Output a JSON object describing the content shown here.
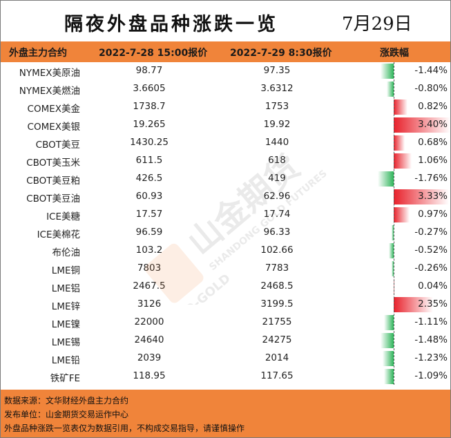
{
  "title": "隔夜外盘品种涨跌一览",
  "date": "7月29日",
  "columns": {
    "contract": "外盘主力合约",
    "price_prev": "2022-7-28 15:00报价",
    "price_curr": "2022-7-29 8:30报价",
    "change": "涨跌幅"
  },
  "chart_data": {
    "type": "table",
    "max_abs_change": 3.4,
    "rows": [
      {
        "name": "NYMEX美原油",
        "prev": "98.77",
        "curr": "97.35",
        "change": -1.44,
        "change_label": "-1.44%"
      },
      {
        "name": "NYMEX美燃油",
        "prev": "3.6605",
        "curr": "3.6312",
        "change": -0.8,
        "change_label": "-0.80%"
      },
      {
        "name": "COMEX美金",
        "prev": "1738.7",
        "curr": "1753",
        "change": 0.82,
        "change_label": "0.82%"
      },
      {
        "name": "COMEX美银",
        "prev": "19.265",
        "curr": "19.92",
        "change": 3.4,
        "change_label": "3.40%"
      },
      {
        "name": "CBOT美豆",
        "prev": "1430.25",
        "curr": "1440",
        "change": 0.68,
        "change_label": "0.68%"
      },
      {
        "name": "CBOT美玉米",
        "prev": "611.5",
        "curr": "618",
        "change": 1.06,
        "change_label": "1.06%"
      },
      {
        "name": "CBOT美豆粕",
        "prev": "426.5",
        "curr": "419",
        "change": -1.76,
        "change_label": "-1.76%"
      },
      {
        "name": "CBOT美豆油",
        "prev": "60.93",
        "curr": "62.96",
        "change": 3.33,
        "change_label": "3.33%"
      },
      {
        "name": "ICE美糖",
        "prev": "17.57",
        "curr": "17.74",
        "change": 0.97,
        "change_label": "0.97%"
      },
      {
        "name": "ICE美棉花",
        "prev": "96.59",
        "curr": "96.33",
        "change": -0.27,
        "change_label": "-0.27%"
      },
      {
        "name": "布伦油",
        "prev": "103.2",
        "curr": "102.66",
        "change": -0.52,
        "change_label": "-0.52%"
      },
      {
        "name": "LME铜",
        "prev": "7803",
        "curr": "7783",
        "change": -0.26,
        "change_label": "-0.26%"
      },
      {
        "name": "LME铝",
        "prev": "2467.5",
        "curr": "2468.5",
        "change": 0.04,
        "change_label": "0.04%"
      },
      {
        "name": "LME锌",
        "prev": "3126",
        "curr": "3199.5",
        "change": 2.35,
        "change_label": "2.35%"
      },
      {
        "name": "LME镍",
        "prev": "22000",
        "curr": "21755",
        "change": -1.11,
        "change_label": "-1.11%"
      },
      {
        "name": "LME锡",
        "prev": "24640",
        "curr": "24275",
        "change": -1.48,
        "change_label": "-1.48%"
      },
      {
        "name": "LME铅",
        "prev": "2039",
        "curr": "2014",
        "change": -1.23,
        "change_label": "-1.23%"
      },
      {
        "name": "铁矿FE",
        "prev": "118.95",
        "curr": "117.65",
        "change": -1.09,
        "change_label": "-1.09%"
      }
    ]
  },
  "colors": {
    "header_bg": "#f0843a",
    "negative": "#2eb45a",
    "positive": "#e8212b"
  },
  "watermark": {
    "brand": "山金期货",
    "sub_en": "SHANDONG GOLD FUTURES",
    "logo_text": "SD-GOLD"
  },
  "footer": {
    "source": "数据来源：文华财经外盘主力合约",
    "publisher": "发布单位：山金期货交易运作中心",
    "disclaimer": "外盘品种涨跌一览表仅为数据引用，不构成交易指导，请谨慎操作"
  }
}
